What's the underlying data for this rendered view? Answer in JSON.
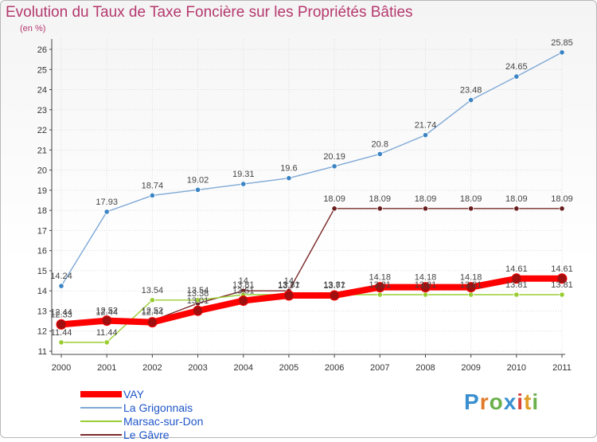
{
  "header": {
    "title": "Evolution du Taux de Taxe Foncière sur les Propriétés Bâties",
    "unit": "(en %)"
  },
  "logo": {
    "letters": [
      "P",
      "r",
      "o",
      "x",
      "i",
      "t",
      "i"
    ],
    "colors": [
      "#3a8fd0",
      "#e07a2a",
      "#6ab04c",
      "#3a8fd0",
      "#d9453b",
      "#e0a02a",
      "#6ab04c"
    ]
  },
  "chart_data": {
    "type": "line",
    "title": "Evolution du Taux de Taxe Foncière sur les Propriétés Bâties",
    "ylabel": "(en %)",
    "xlabel": "",
    "categories": [
      "2000",
      "2001",
      "2002",
      "2003",
      "2004",
      "2005",
      "2006",
      "2007",
      "2008",
      "2009",
      "2010",
      "2011"
    ],
    "ylim": [
      11,
      26
    ],
    "yticks": [
      11,
      12,
      13,
      14,
      15,
      16,
      17,
      18,
      19,
      20,
      21,
      22,
      23,
      24,
      25,
      26
    ],
    "grid": true,
    "legend_position": "bottom-left",
    "series": [
      {
        "name": "VAY",
        "color": "#ff0000",
        "values": [
          12.33,
          12.52,
          12.44,
          13.01,
          13.51,
          13.77,
          13.77,
          14.18,
          14.18,
          14.18,
          14.61,
          14.61
        ],
        "labels": [
          "12.33",
          "12.52",
          "12.44",
          "13.01",
          "13.51",
          "13.77",
          "13.77",
          "14.18",
          "14.18",
          "14.18",
          "14.61",
          "14.61"
        ]
      },
      {
        "name": "La Grigonnais",
        "color": "#7fa9d6",
        "values": [
          14.24,
          17.93,
          18.74,
          19.02,
          19.31,
          19.6,
          20.19,
          20.8,
          21.74,
          23.48,
          24.65,
          25.85
        ],
        "labels": [
          "14.24",
          "17.93",
          "18.74",
          "19.02",
          "19.31",
          "19.6",
          "20.19",
          "20.8",
          "21.74",
          "23.48",
          "24.65",
          "25.85"
        ]
      },
      {
        "name": "Marsac-sur-Don",
        "color": "#9acd32",
        "values": [
          11.44,
          11.44,
          13.54,
          13.54,
          13.81,
          13.81,
          13.81,
          13.81,
          13.81,
          13.81,
          13.81,
          13.81
        ],
        "labels": [
          "11.44",
          "11.44",
          "13.54",
          "13.54",
          "13.81",
          "13.81",
          "13.81",
          "13.81",
          "13.81",
          "13.81",
          "13.81",
          "13.81"
        ]
      },
      {
        "name": "Le Gâvre",
        "color": "#7b2a2a",
        "values": [
          12.44,
          12.44,
          12.52,
          13.38,
          14.0,
          14.0,
          18.09,
          18.09,
          18.09,
          18.09,
          18.09,
          18.09
        ],
        "labels": [
          "12.44",
          "12.44",
          "12.52",
          "13.38",
          "14",
          "14",
          "18.09",
          "18.09",
          "18.09",
          "18.09",
          "18.09",
          "18.09"
        ]
      }
    ]
  }
}
